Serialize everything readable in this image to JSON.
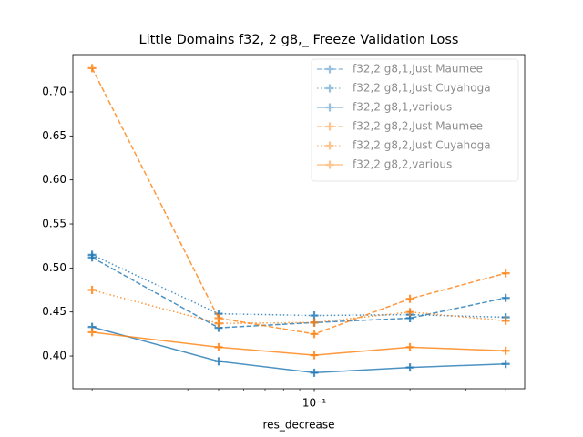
{
  "chart_data": {
    "type": "line",
    "title": "Little Domains f32, 2 g8,_ Freeze Validation Loss",
    "x_label": "res_decrease",
    "x": [
      0.02,
      0.05,
      0.1,
      0.2,
      0.4
    ],
    "xscale": "log",
    "xlim": [
      0.0174,
      0.459
    ],
    "xticks": [
      {
        "value": 0.1,
        "label": "10⁻¹"
      }
    ],
    "xminorticks": [
      0.02,
      0.03,
      0.04,
      0.05,
      0.06,
      0.07,
      0.08,
      0.09,
      0.2,
      0.3,
      0.4
    ],
    "ylim": [
      0.3628,
      0.7424
    ],
    "yticks": [
      {
        "value": 0.4,
        "label": "0.40"
      },
      {
        "value": 0.45,
        "label": "0.45"
      },
      {
        "value": 0.5,
        "label": "0.50"
      },
      {
        "value": 0.55,
        "label": "0.55"
      },
      {
        "value": 0.6,
        "label": "0.60"
      },
      {
        "value": 0.65,
        "label": "0.65"
      },
      {
        "value": 0.7,
        "label": "0.70"
      }
    ],
    "legend": "upper right",
    "series": [
      {
        "name": "f32,2 g8,1,Just Maumee",
        "color": "#1f77b4",
        "linestyle": "dashed",
        "values": [
          0.512,
          0.432,
          0.438,
          0.443,
          0.466
        ]
      },
      {
        "name": "f32,2 g8,1,Just Cuyahoga",
        "color": "#1f77b4",
        "linestyle": "dotted",
        "values": [
          0.515,
          0.448,
          0.446,
          0.447,
          0.444
        ]
      },
      {
        "name": "f32,2 g8,1,various",
        "color": "#1f77b4",
        "linestyle": "solid",
        "values": [
          0.433,
          0.394,
          0.381,
          0.387,
          0.391
        ]
      },
      {
        "name": "f32,2 g8,2,Just Maumee",
        "color": "#ff7f0e",
        "linestyle": "dashed",
        "values": [
          0.727,
          0.443,
          0.425,
          0.465,
          0.494
        ]
      },
      {
        "name": "f32,2 g8,2,Just Cuyahoga",
        "color": "#ff7f0e",
        "linestyle": "dotted",
        "values": [
          0.475,
          0.437,
          0.438,
          0.45,
          0.44
        ]
      },
      {
        "name": "f32,2 g8,2,various",
        "color": "#ff7f0e",
        "linestyle": "solid",
        "values": [
          0.427,
          0.41,
          0.401,
          0.41,
          0.406
        ]
      }
    ]
  }
}
